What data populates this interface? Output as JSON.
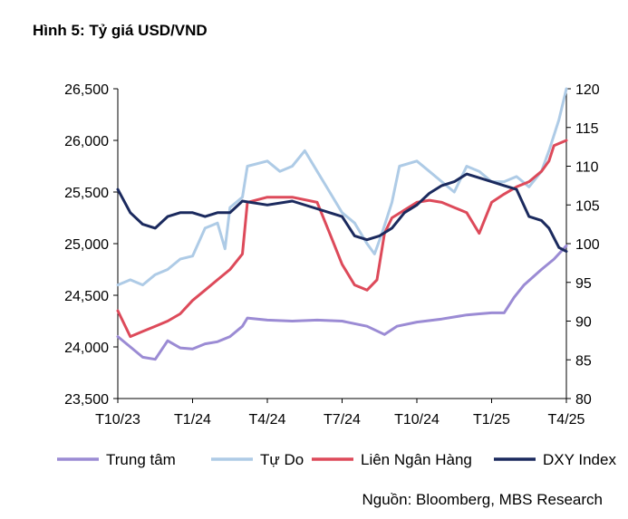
{
  "chart_data": {
    "type": "line",
    "title": "Hình 5: Tỷ giá USD/VND",
    "source": "Nguồn: Bloomberg, MBS Research",
    "x_ticks": [
      "T10/23",
      "T1/24",
      "T4/24",
      "T7/24",
      "T10/24",
      "T1/25",
      "T4/25"
    ],
    "x_range": [
      0,
      18
    ],
    "y_left": {
      "min": 23500,
      "max": 26500,
      "step": 500,
      "tick_labels": [
        "23,500",
        "24,000",
        "24,500",
        "25,000",
        "25,500",
        "26,000",
        "26,500"
      ]
    },
    "y_right": {
      "min": 80,
      "max": 120,
      "step": 5,
      "tick_labels": [
        "80",
        "85",
        "90",
        "95",
        "100",
        "105",
        "110",
        "115",
        "120"
      ]
    },
    "legend_position": "bottom",
    "series": [
      {
        "name": "Trung tâm",
        "color": "#9b8bd4",
        "axis": "left",
        "points": [
          [
            0,
            24100
          ],
          [
            0.5,
            24000
          ],
          [
            1,
            23900
          ],
          [
            1.5,
            23880
          ],
          [
            2,
            24060
          ],
          [
            2.5,
            23990
          ],
          [
            3,
            23980
          ],
          [
            3.5,
            24030
          ],
          [
            4,
            24050
          ],
          [
            4.5,
            24100
          ],
          [
            5,
            24200
          ],
          [
            5.2,
            24280
          ],
          [
            6,
            24260
          ],
          [
            7,
            24250
          ],
          [
            8,
            24260
          ],
          [
            9,
            24250
          ],
          [
            10,
            24200
          ],
          [
            10.7,
            24120
          ],
          [
            11.2,
            24200
          ],
          [
            12,
            24240
          ],
          [
            13,
            24270
          ],
          [
            14,
            24310
          ],
          [
            14.5,
            24320
          ],
          [
            15,
            24330
          ],
          [
            15.5,
            24330
          ],
          [
            15.9,
            24480
          ],
          [
            16.3,
            24600
          ],
          [
            17,
            24750
          ],
          [
            17.5,
            24850
          ],
          [
            18,
            24980
          ]
        ]
      },
      {
        "name": "Tự Do",
        "color": "#aecbe6",
        "axis": "left",
        "points": [
          [
            0,
            24600
          ],
          [
            0.5,
            24650
          ],
          [
            1,
            24600
          ],
          [
            1.5,
            24700
          ],
          [
            2,
            24750
          ],
          [
            2.5,
            24850
          ],
          [
            3,
            24880
          ],
          [
            3.5,
            25150
          ],
          [
            4,
            25200
          ],
          [
            4.3,
            24950
          ],
          [
            4.5,
            25350
          ],
          [
            5,
            25450
          ],
          [
            5.2,
            25750
          ],
          [
            6,
            25800
          ],
          [
            6.5,
            25700
          ],
          [
            7,
            25750
          ],
          [
            7.5,
            25900
          ],
          [
            8,
            25700
          ],
          [
            8.5,
            25500
          ],
          [
            9,
            25300
          ],
          [
            9.5,
            25200
          ],
          [
            10,
            25000
          ],
          [
            10.3,
            24900
          ],
          [
            10.6,
            25100
          ],
          [
            11,
            25400
          ],
          [
            11.3,
            25750
          ],
          [
            12,
            25800
          ],
          [
            12.5,
            25700
          ],
          [
            13,
            25600
          ],
          [
            13.5,
            25500
          ],
          [
            14,
            25750
          ],
          [
            14.5,
            25700
          ],
          [
            15,
            25600
          ],
          [
            15.5,
            25600
          ],
          [
            16,
            25650
          ],
          [
            16.5,
            25550
          ],
          [
            17,
            25700
          ],
          [
            17.3,
            25900
          ],
          [
            17.7,
            26200
          ],
          [
            18,
            26500
          ]
        ]
      },
      {
        "name": "Liên Ngân Hàng",
        "color": "#dd4a5a",
        "axis": "left",
        "points": [
          [
            0,
            24350
          ],
          [
            0.5,
            24100
          ],
          [
            1,
            24150
          ],
          [
            1.5,
            24200
          ],
          [
            2,
            24250
          ],
          [
            2.5,
            24320
          ],
          [
            3,
            24450
          ],
          [
            3.5,
            24550
          ],
          [
            4,
            24650
          ],
          [
            4.5,
            24750
          ],
          [
            5,
            24900
          ],
          [
            5.2,
            25400
          ],
          [
            6,
            25450
          ],
          [
            7,
            25450
          ],
          [
            8,
            25400
          ],
          [
            8.5,
            25100
          ],
          [
            9,
            24800
          ],
          [
            9.5,
            24600
          ],
          [
            10,
            24550
          ],
          [
            10.4,
            24650
          ],
          [
            10.7,
            25100
          ],
          [
            11,
            25250
          ],
          [
            12,
            25400
          ],
          [
            12.5,
            25420
          ],
          [
            13,
            25400
          ],
          [
            13.5,
            25350
          ],
          [
            14,
            25300
          ],
          [
            14.5,
            25100
          ],
          [
            15,
            25400
          ],
          [
            15.5,
            25480
          ],
          [
            16,
            25550
          ],
          [
            16.5,
            25600
          ],
          [
            17,
            25700
          ],
          [
            17.3,
            25800
          ],
          [
            17.5,
            25950
          ],
          [
            18,
            26000
          ]
        ]
      },
      {
        "name": "DXY Index",
        "color": "#1b2a5e",
        "axis": "right",
        "points": [
          [
            0,
            107
          ],
          [
            0.5,
            104
          ],
          [
            1,
            102.5
          ],
          [
            1.5,
            102
          ],
          [
            2,
            103.5
          ],
          [
            2.5,
            104
          ],
          [
            3,
            104
          ],
          [
            3.5,
            103.5
          ],
          [
            4,
            104
          ],
          [
            4.5,
            104
          ],
          [
            5,
            105.5
          ],
          [
            6,
            105
          ],
          [
            7,
            105.5
          ],
          [
            8,
            104.5
          ],
          [
            8.5,
            104
          ],
          [
            9,
            103.5
          ],
          [
            9.5,
            101
          ],
          [
            10,
            100.5
          ],
          [
            10.5,
            101
          ],
          [
            11,
            102
          ],
          [
            11.5,
            104
          ],
          [
            12,
            105
          ],
          [
            12.5,
            106.5
          ],
          [
            13,
            107.5
          ],
          [
            13.5,
            108
          ],
          [
            14,
            109
          ],
          [
            14.5,
            108.5
          ],
          [
            15,
            108
          ],
          [
            15.5,
            107.5
          ],
          [
            16,
            107
          ],
          [
            16.5,
            103.5
          ],
          [
            17,
            103
          ],
          [
            17.3,
            102
          ],
          [
            17.7,
            99.5
          ],
          [
            18,
            99
          ]
        ]
      }
    ]
  }
}
